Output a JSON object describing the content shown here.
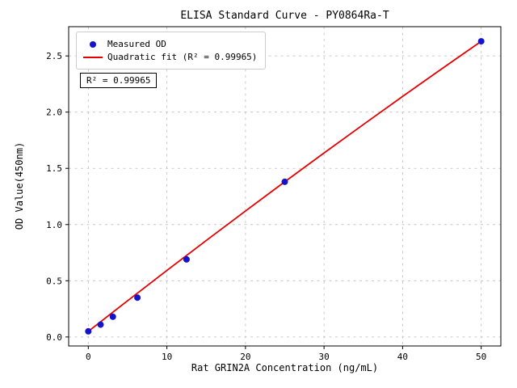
{
  "chart_data": {
    "type": "scatter",
    "title": "ELISA Standard Curve - PY0864Ra-T",
    "xlabel": "Rat GRIN2A Concentration (ng/mL)",
    "ylabel": "OD Value(450nm)",
    "xlim": [
      -2.5,
      52.5
    ],
    "ylim": [
      -0.08,
      2.76
    ],
    "xticks": [
      0,
      10,
      20,
      30,
      40,
      50
    ],
    "yticks": [
      0.0,
      0.5,
      1.0,
      1.5,
      2.0,
      2.5
    ],
    "grid": true,
    "grid_style": "dashed",
    "legend": {
      "position": "upper left",
      "entries": [
        {
          "label": "Measured OD",
          "marker": "dot",
          "color": "#1414cd"
        },
        {
          "label": "Quadratic fit (R² = 0.99965)",
          "marker": "line",
          "color": "#e60000"
        }
      ]
    },
    "annotation": "R² = 0.99965",
    "series": [
      {
        "name": "Measured OD",
        "type": "scatter",
        "color": "#1414cd",
        "x": [
          0,
          1.5625,
          3.125,
          6.25,
          12.5,
          25,
          50
        ],
        "y": [
          0.05,
          0.11,
          0.18,
          0.35,
          0.69,
          1.38,
          2.63
        ]
      },
      {
        "name": "Quadratic fit",
        "type": "line",
        "color": "#e60000",
        "x": [
          0,
          5,
          10,
          15,
          20,
          25,
          30,
          35,
          40,
          45,
          50
        ],
        "y": [
          0.05,
          0.3224,
          0.5916,
          0.8576,
          1.1204,
          1.3805,
          1.6364,
          1.8896,
          2.1396,
          2.3864,
          2.63
        ]
      }
    ]
  }
}
